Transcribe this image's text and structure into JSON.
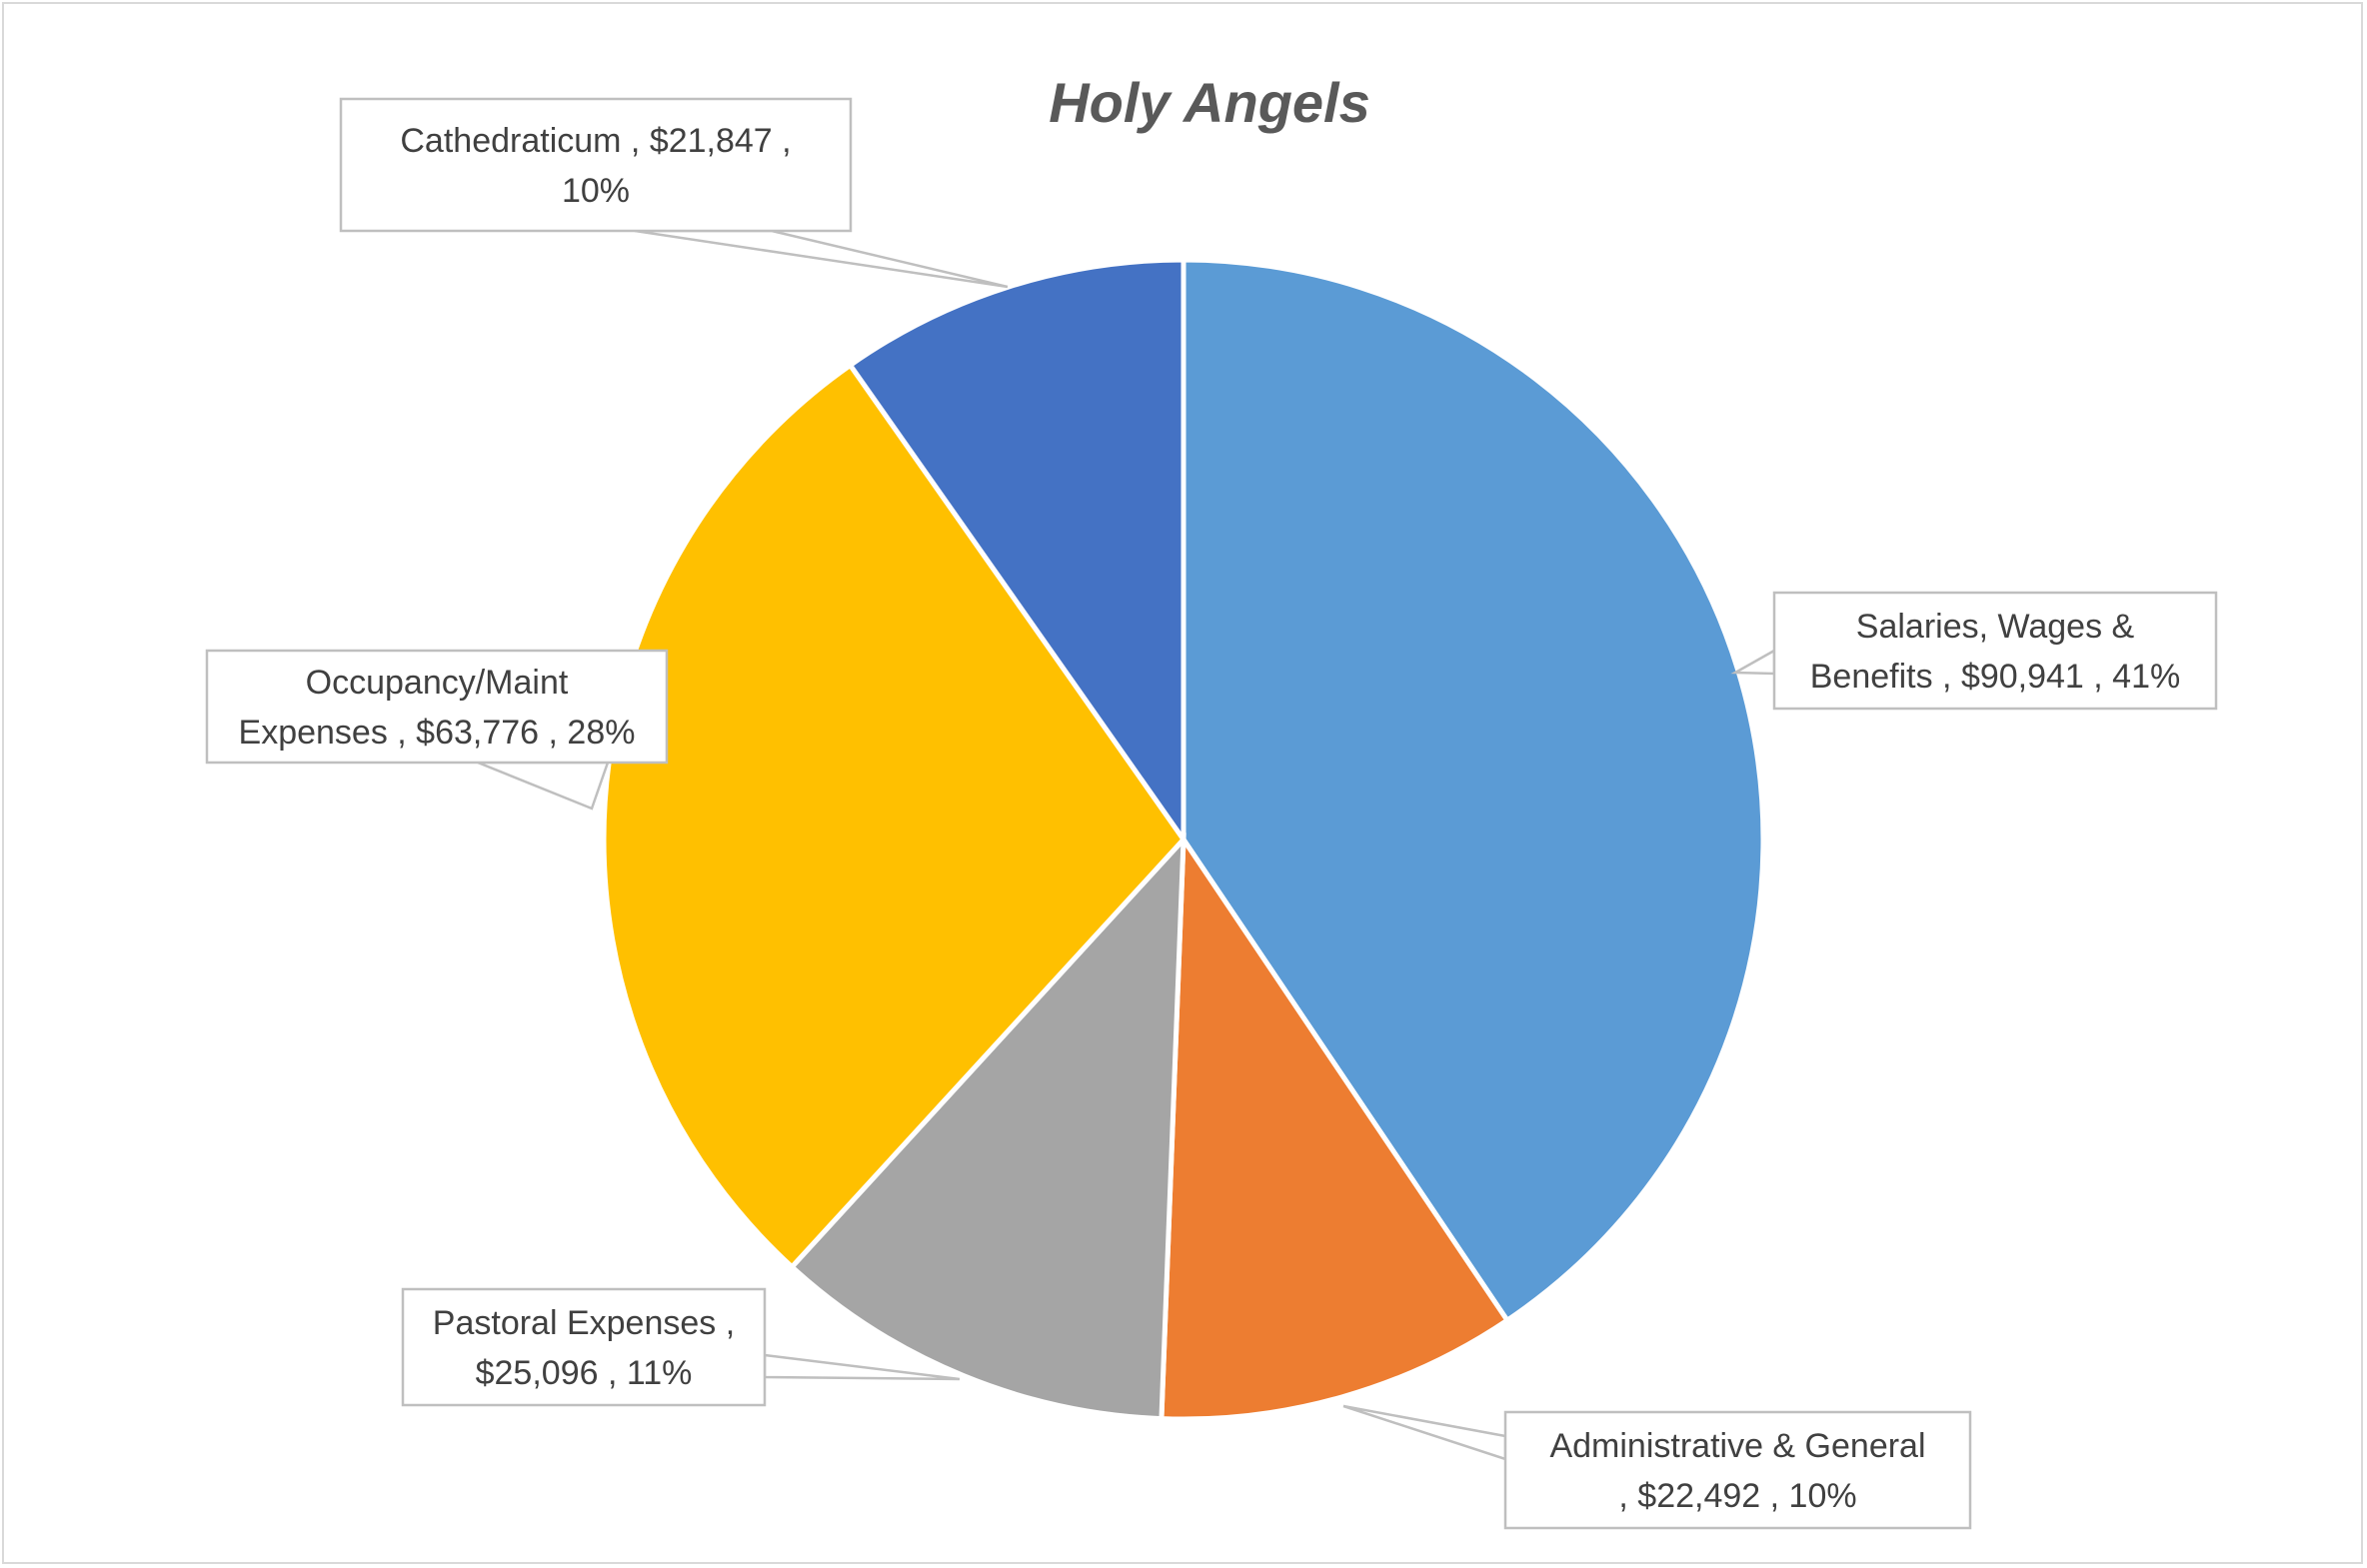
{
  "chart_data": {
    "type": "pie",
    "title": "Holy Angels",
    "start_angle_deg": 0,
    "direction": "clockwise",
    "slices": [
      {
        "name": "Salaries, Wages & Benefits",
        "value": 90941,
        "value_label": "$90,941",
        "percent_label": "41%",
        "color": "#5B9BD5",
        "label_lines": [
          "Salaries, Wages &",
          "Benefits ,  $90,941 , 41%"
        ]
      },
      {
        "name": "Administrative & General",
        "value": 22492,
        "value_label": "$22,492",
        "percent_label": "10%",
        "color": "#ED7D31",
        "label_lines": [
          "Administrative & General",
          ",  $22,492 , 10%"
        ]
      },
      {
        "name": "Pastoral Expenses",
        "value": 25096,
        "value_label": "$25,096",
        "percent_label": "11%",
        "color": "#A5A5A5",
        "label_lines": [
          "Pastoral Expenses ,",
          "$25,096 , 11%"
        ]
      },
      {
        "name": "Occupancy/Maint Expenses",
        "value": 63776,
        "value_label": "$63,776",
        "percent_label": "28%",
        "color": "#FFC000",
        "label_lines": [
          "Occupancy/Maint",
          "Expenses ,  $63,776 , 28%"
        ]
      },
      {
        "name": "Cathedraticum",
        "value": 21847,
        "value_label": "$21,847",
        "percent_label": "10%",
        "color": "#4472C4",
        "label_lines": [
          "Cathedraticum ,  $21,847 ,",
          "10%"
        ]
      }
    ]
  }
}
